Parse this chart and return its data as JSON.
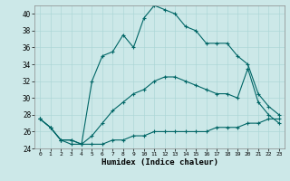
{
  "xlabel": "Humidex (Indice chaleur)",
  "ylabel": "",
  "bg_color": "#cce8e8",
  "line_color": "#006666",
  "x": [
    0,
    1,
    2,
    3,
    4,
    5,
    6,
    7,
    8,
    9,
    10,
    11,
    12,
    13,
    14,
    15,
    16,
    17,
    18,
    19,
    20,
    21,
    22,
    23
  ],
  "y_max": [
    27.5,
    26.5,
    25.0,
    25.0,
    24.5,
    32.0,
    35.0,
    35.5,
    37.5,
    36.0,
    39.5,
    41.0,
    40.5,
    40.0,
    38.5,
    38.0,
    36.5,
    36.5,
    36.5,
    35.0,
    34.0,
    30.5,
    29.0,
    28.0
  ],
  "y_mean": [
    27.5,
    26.5,
    25.0,
    25.0,
    24.5,
    25.5,
    27.0,
    28.5,
    29.5,
    30.5,
    31.0,
    32.0,
    32.5,
    32.5,
    32.0,
    31.5,
    31.0,
    30.5,
    30.5,
    30.0,
    33.5,
    29.5,
    28.0,
    27.0
  ],
  "y_min": [
    27.5,
    26.5,
    25.0,
    24.5,
    24.5,
    24.5,
    24.5,
    25.0,
    25.0,
    25.5,
    25.5,
    26.0,
    26.0,
    26.0,
    26.0,
    26.0,
    26.0,
    26.5,
    26.5,
    26.5,
    27.0,
    27.0,
    27.5,
    27.5
  ],
  "xlim": [
    -0.5,
    23.5
  ],
  "ylim": [
    24,
    41
  ],
  "yticks": [
    24,
    26,
    28,
    30,
    32,
    34,
    36,
    38,
    40
  ],
  "xticks": [
    0,
    1,
    2,
    3,
    4,
    5,
    6,
    7,
    8,
    9,
    10,
    11,
    12,
    13,
    14,
    15,
    16,
    17,
    18,
    19,
    20,
    21,
    22,
    23
  ]
}
